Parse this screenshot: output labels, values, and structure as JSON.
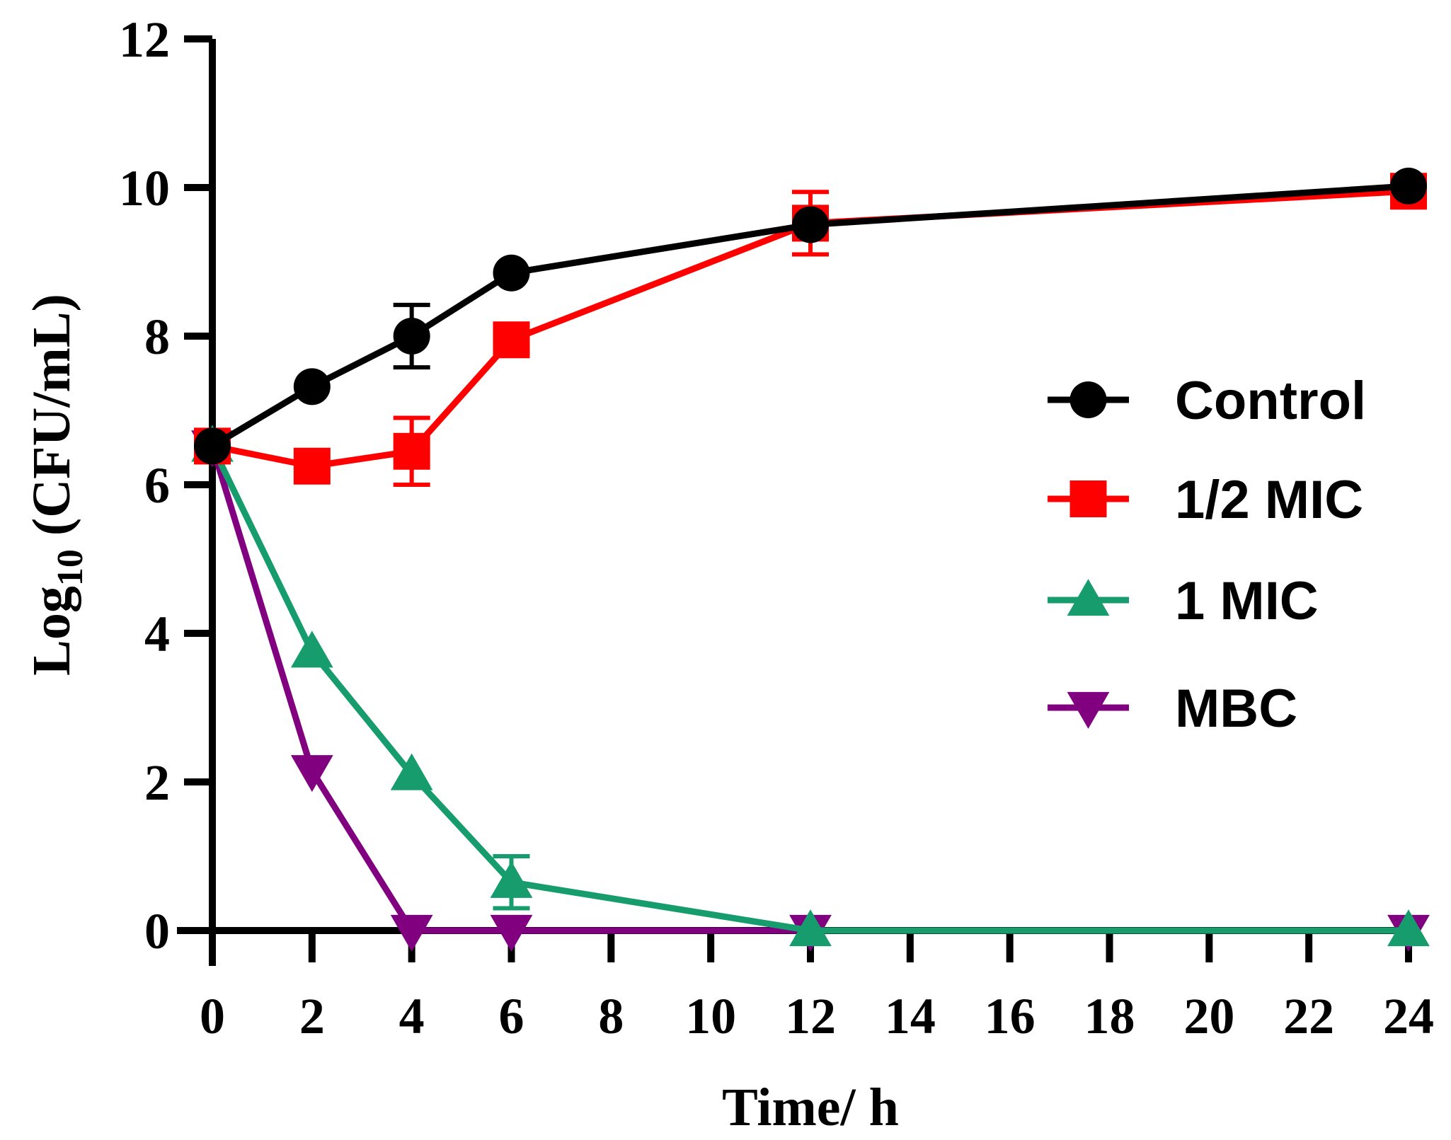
{
  "chart_data": {
    "type": "line",
    "xlabel": "Time/ h",
    "ylabel_main": "Log",
    "ylabel_sub": "10",
    "ylabel_rest": " (CFU/mL)",
    "xlim": [
      0,
      24
    ],
    "ylim": [
      0,
      12
    ],
    "x_ticks": [
      "0",
      "2",
      "4",
      "6",
      "8",
      "10",
      "12",
      "14",
      "16",
      "18",
      "20",
      "22",
      "24"
    ],
    "y_ticks": [
      "0",
      "2",
      "4",
      "6",
      "8",
      "10",
      "12"
    ],
    "x": [
      0,
      2,
      4,
      6,
      12,
      24
    ],
    "grid": false,
    "legend_position": "right",
    "series": [
      {
        "name": "Control",
        "marker": "circle",
        "color": "#000000",
        "values": [
          6.52,
          7.32,
          8.0,
          8.85,
          9.5,
          10.02
        ],
        "errors": [
          0.08,
          0.08,
          0.42,
          0.08,
          0.08,
          0.08
        ]
      },
      {
        "name": "1/2 MIC",
        "marker": "square",
        "color": "#ff0000",
        "values": [
          6.52,
          6.25,
          6.45,
          7.95,
          9.52,
          9.95
        ],
        "errors": [
          0.1,
          0.08,
          0.45,
          0.1,
          0.42,
          0.08
        ]
      },
      {
        "name": "1 MIC",
        "marker": "triangle-up",
        "color": "#179c6e",
        "values": [
          6.52,
          3.75,
          2.1,
          0.65,
          0.0,
          0.0
        ],
        "errors": [
          0.05,
          0.05,
          0.05,
          0.35,
          0.0,
          0.0
        ]
      },
      {
        "name": "MBC",
        "marker": "triangle-down",
        "color": "#800080",
        "values": [
          6.52,
          2.15,
          0.0,
          0.0,
          0.0,
          0.0
        ],
        "errors": [
          0.05,
          0.05,
          0.0,
          0.0,
          0.0,
          0.0
        ]
      }
    ]
  }
}
